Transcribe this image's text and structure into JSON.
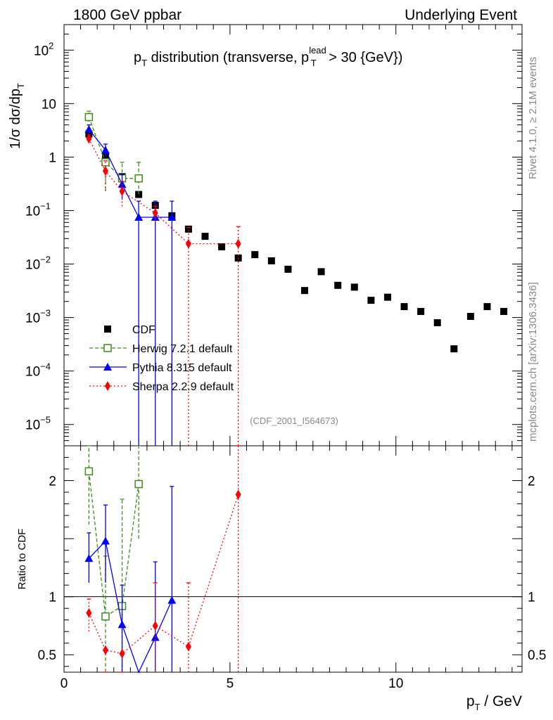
{
  "header": {
    "left": "1800 GeV ppbar",
    "right": "Underlying Event"
  },
  "title": {
    "main": "p",
    "sub_t": "T",
    "middle": " distribution (transverse, p",
    "sup": "lead",
    "sub_t2": "T",
    "end": " > 30 {GeV})"
  },
  "ylabel_main": {
    "a": "1/σ  dσ/dp",
    "sub": "T"
  },
  "ylabel_ratio": "Ratio to CDF",
  "xlabel": {
    "a": "p",
    "sub": "T",
    "b": " / GeV"
  },
  "side_texts": {
    "rivet": "Rivet 4.1.0, ≥ 2.1M events",
    "mcplots": "mcplots.cern.ch [arXiv:1306.3436]"
  },
  "analysis_tag": "(CDF_2001_I564673)",
  "colors": {
    "cdf": "#000000",
    "herwig": "#3d8c1a",
    "pythia": "#0000ff",
    "sherpa": "#ff0000",
    "side_text": "#888888"
  },
  "chart_data": {
    "type": "scatter",
    "title": "pT distribution (transverse, pT lead > 30 {GeV})",
    "xlabel": "pT / GeV",
    "ylabel": "1/σ dσ/dpT",
    "xlim": [
      0,
      13.8
    ],
    "ylim_main": [
      4e-06,
      300
    ],
    "yscale_main": "log",
    "ylim_ratio": [
      0.35,
      2.3
    ],
    "x_ticks": [
      0,
      5,
      10
    ],
    "y_ticks_main": [
      {
        "v": 1e-05,
        "base": "10",
        "exp": "−5"
      },
      {
        "v": 0.0001,
        "base": "10",
        "exp": "−4"
      },
      {
        "v": 0.001,
        "base": "10",
        "exp": "−3"
      },
      {
        "v": 0.01,
        "base": "10",
        "exp": "−2"
      },
      {
        "v": 0.1,
        "base": "10",
        "exp": "−1"
      },
      {
        "v": 1,
        "base": "1",
        "exp": ""
      },
      {
        "v": 10,
        "base": "10",
        "exp": ""
      },
      {
        "v": 100,
        "base": "10",
        "exp": "2"
      }
    ],
    "y_ticks_ratio": [
      0.5,
      1,
      2
    ],
    "legend_position": "lower-left",
    "series": [
      {
        "name": "CDF",
        "key": "cdf",
        "x": [
          0.75,
          1.25,
          1.75,
          2.25,
          2.75,
          3.25,
          3.75,
          4.25,
          4.75,
          5.25,
          5.75,
          6.25,
          6.75,
          7.25,
          7.75,
          8.25,
          8.75,
          9.25,
          9.75,
          10.25,
          10.75,
          11.25,
          11.75,
          12.25,
          12.75,
          13.25
        ],
        "y": [
          2.7,
          1.0,
          0.43,
          0.2,
          0.125,
          0.08,
          0.045,
          0.033,
          0.021,
          0.013,
          0.015,
          0.0115,
          0.008,
          0.0032,
          0.0072,
          0.004,
          0.0037,
          0.0021,
          0.0024,
          0.0016,
          0.0013,
          0.0008,
          0.00026,
          0.00105,
          0.0016,
          0.0013
        ]
      },
      {
        "name": "Herwig 7.2.1 default",
        "key": "herwig",
        "x": [
          0.75,
          1.25,
          1.75,
          2.25
        ],
        "y": [
          5.6,
          0.8,
          0.4,
          0.4
        ],
        "yerr_low": [
          4.6,
          0.24,
          0.4,
          0.2
        ],
        "yerr_high": [
          7.2,
          1.35,
          0.8,
          0.8
        ],
        "ratio": [
          2.08,
          0.83,
          0.92,
          1.97
        ],
        "ratio_low": [
          1.62,
          0.33,
          0.33,
          1.5
        ],
        "ratio_high": [
          2.3,
          1.35,
          1.84,
          2.3
        ]
      },
      {
        "name": "Pythia 8.315 default",
        "key": "pythia",
        "x": [
          0.75,
          1.25,
          1.75,
          2.25,
          2.75,
          3.25
        ],
        "y": [
          3.3,
          1.35,
          0.31,
          0.075,
          0.075,
          0.075
        ],
        "yerr_low": [
          2.7,
          1.0,
          0.16,
          4e-06,
          4e-06,
          4e-06
        ],
        "yerr_high": [
          4.0,
          1.75,
          0.47,
          0.15,
          0.15,
          0.15
        ],
        "ratio": [
          1.33,
          1.48,
          0.76,
          0.35,
          0.65,
          0.97
        ],
        "ratio_low": [
          1.12,
          1.12,
          0.35,
          0.35,
          0.35,
          0.35
        ],
        "ratio_high": [
          1.55,
          1.79,
          1.1,
          0.35,
          1.3,
          1.95
        ]
      },
      {
        "name": "Sherpa 2.2.9 default",
        "key": "sherpa",
        "x": [
          0.75,
          1.25,
          1.75,
          2.75,
          3.75,
          5.25
        ],
        "y": [
          2.2,
          0.55,
          0.23,
          0.09,
          0.024,
          0.024
        ],
        "yerr_low": [
          1.8,
          0.23,
          0.12,
          0.06,
          4e-06,
          4e-06
        ],
        "yerr_high": [
          2.6,
          0.85,
          0.35,
          0.12,
          0.048,
          0.05
        ],
        "ratio": [
          0.86,
          0.54,
          0.51,
          0.75,
          0.57,
          1.88
        ],
        "ratio_low": [
          0.7,
          0.35,
          0.35,
          0.35,
          0.35,
          0.35
        ],
        "ratio_high": [
          0.98,
          0.35,
          0.35,
          1.12,
          1.12,
          2.3
        ]
      }
    ]
  }
}
